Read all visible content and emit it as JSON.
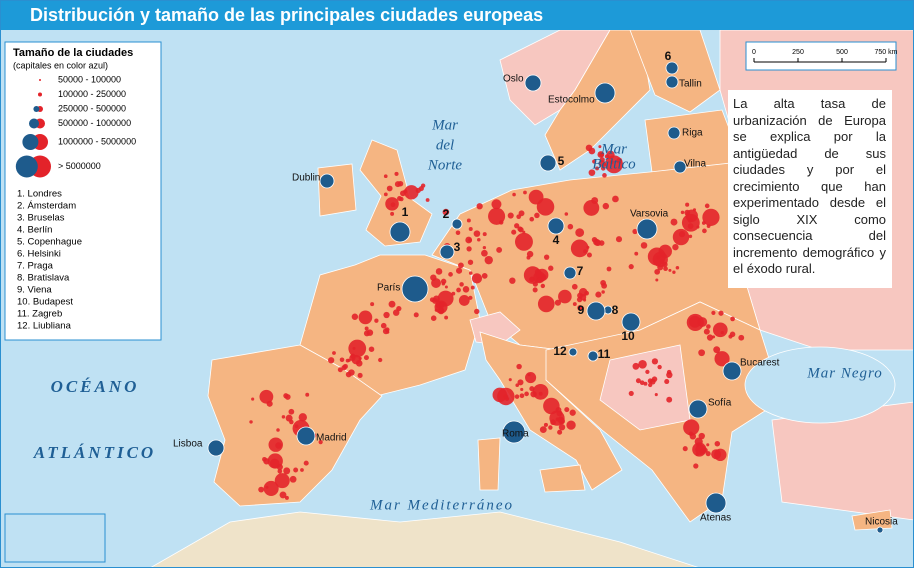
{
  "title": "Distribución y tamaño de las principales ciudades europeas",
  "legend": {
    "title": "Tamaño de la ciudades",
    "subtitle": "(capitales en color azul)",
    "sizes": [
      "50000 - 100000",
      "100000 - 250000",
      "250000 - 500000",
      "500000 - 1000000",
      "1000000 - 5000000",
      "> 5000000"
    ],
    "capitals": [
      "1. Londres",
      "2. Ámsterdam",
      "3. Bruselas",
      "4. Berlín",
      "5. Copenhague",
      "6. Helsinki",
      "7. Praga",
      "8. Bratislava",
      "9. Viena",
      "10. Budapest",
      "11. Zagreb",
      "12. Liubliana"
    ]
  },
  "scale": [
    "0",
    "250",
    "500",
    "750 km"
  ],
  "seas": {
    "north": [
      "Mar",
      "del",
      "Norte"
    ],
    "baltic": [
      "Mar",
      "Báltico"
    ],
    "ocean": [
      "OCÉANO",
      "ATLÁNTICO"
    ],
    "mediterranean": "Mar Mediterráneo",
    "black": "Mar Negro"
  },
  "cities": [
    "Oslo",
    "Estocolmo",
    "Tallin",
    "Riga",
    "Vilna",
    "Dublin",
    "Varsovia",
    "París",
    "Bucarest",
    "Sofía",
    "Madrid",
    "Lisboa",
    "Roma",
    "Atenas",
    "Nicosia"
  ],
  "map_numbers": [
    "1",
    "2",
    "3",
    "4",
    "5",
    "6",
    "7",
    "8",
    "9",
    "10",
    "11",
    "12"
  ],
  "note": "La alta tasa de urbanización de Europa se explica por la antigüedad de sus ciudades y por el crecimiento que han experimentado desde el siglo XIX como consecuencia del incremento demográfico y el éxodo rural."
}
